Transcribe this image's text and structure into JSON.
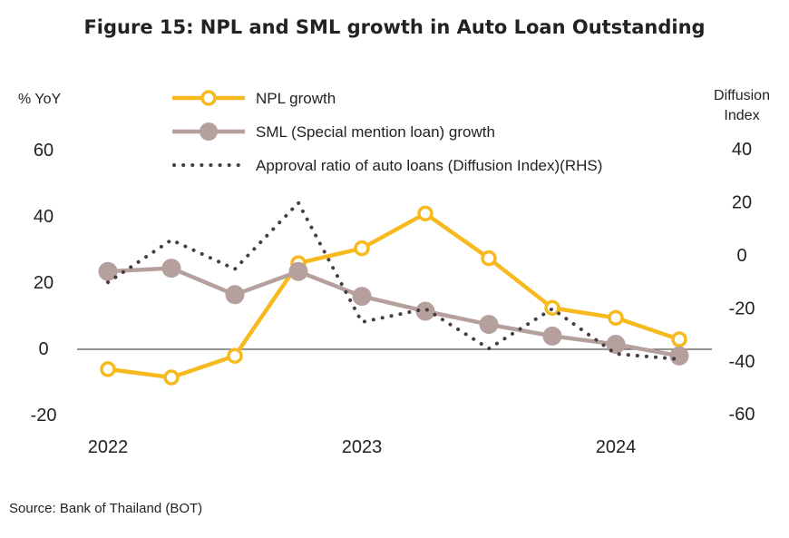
{
  "title": "Figure 15: NPL and SML growth in Auto Loan Outstanding",
  "source": "Source: Bank of Thailand (BOT)",
  "chart_data": {
    "type": "line",
    "title": "Figure 15: NPL and SML growth in Auto Loan Outstanding",
    "ylabel": "% YoY",
    "y2label_line1": "Diffusion",
    "y2label_line2": "Index",
    "ylim": [
      -20,
      60
    ],
    "y_ticks": [
      -20,
      0,
      20,
      40,
      60
    ],
    "y2lim": [
      -60,
      40
    ],
    "y2_ticks": [
      -60,
      -40,
      -20,
      0,
      20,
      40
    ],
    "x_tick_labels": [
      "2022",
      "2023",
      "2024"
    ],
    "x": [
      "2022Q1",
      "2022Q2",
      "2022Q3",
      "2022Q4",
      "2023Q1",
      "2023Q2",
      "2023Q3",
      "2023Q4",
      "2024Q1",
      "2024Q2"
    ],
    "series": [
      {
        "name": "NPL growth",
        "axis": "left",
        "color": "#F7BA1E",
        "values": [
          -6,
          -8.5,
          -2,
          26,
          30.5,
          41,
          27.5,
          12.5,
          9.5,
          3
        ]
      },
      {
        "name": "SML (Special mention loan) growth",
        "axis": "left",
        "color": "#B5A09E",
        "values": [
          23.5,
          24.5,
          16.5,
          23.5,
          16,
          11.5,
          7.5,
          4,
          1.5,
          -2
        ]
      },
      {
        "name": "Approval ratio of auto loans (Diffusion Index)(RHS)",
        "axis": "right",
        "color": "#4A3D3D",
        "x": [
          "2022Q1",
          "2022Q1.5",
          "2022Q2",
          "2022Q3",
          "2022Q4",
          "2023Q1",
          "2023Q2",
          "2023Q3",
          "2023Q4",
          "2024Q1",
          "2024Q2"
        ],
        "values": [
          -10,
          -2,
          6,
          -5,
          20,
          -25,
          -20,
          -35,
          -20,
          -37,
          -39
        ]
      }
    ],
    "legend_position": "top-center",
    "grid": false
  }
}
